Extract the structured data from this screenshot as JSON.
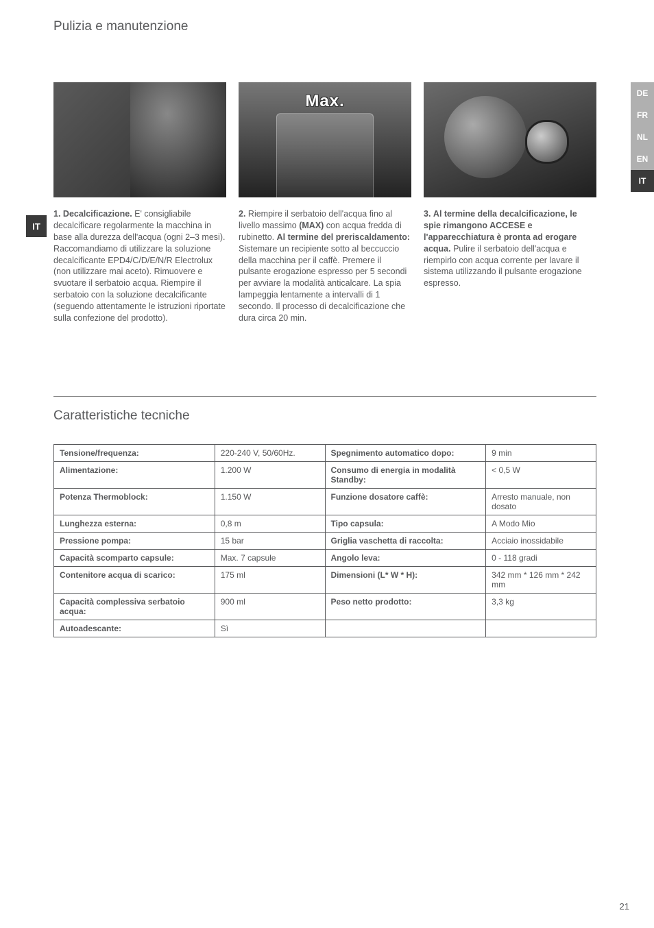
{
  "header": "Pulizia e manutenzione",
  "leftTab": "IT",
  "rightTabs": [
    {
      "label": "DE",
      "active": false
    },
    {
      "label": "FR",
      "active": false
    },
    {
      "label": "NL",
      "active": false
    },
    {
      "label": "EN",
      "active": false
    },
    {
      "label": "IT",
      "active": true
    }
  ],
  "maxLabel": "Max.",
  "steps": [
    {
      "num": "1.",
      "boldLead": "Decalcificazione.",
      "rest": " E' consigliabile decalcificare regolarmente la macchina in base alla durezza dell'acqua (ogni 2–3 mesi). Raccomandiamo di utilizzare la soluzione decalcificante EPD4/C/D/E/N/R Electrolux (non utilizzare mai aceto). Rimuovere e svuotare il serbatoio acqua. Riempire il serbatoio con la soluzione decalcificante (seguendo attentamente le istruzioni riportate sulla confezione del prodotto)."
    },
    {
      "num": "2.",
      "pre": " Riempire il serbatoio dell'acqua fino al livello massimo ",
      "bold1": "(MAX)",
      "mid": " con acqua fredda di rubinetto. ",
      "bold2": "Al termine del preriscaldamento:",
      "rest": " Sistemare un recipiente sotto al beccuccio della macchina per il caffè. Premere il pulsante erogazione espresso per 5 secondi per avviare la modalità anticalcare. La spia lampeggia lentamente a intervalli di 1 secondo. Il processo di decalcificazione che dura circa 20 min."
    },
    {
      "num": "3.",
      "boldLead": "Al termine della decalcificazione, le spie rimangono ACCESE e l'apparecchiatura è pronta ad erogare acqua.",
      "rest": " Pulire il serbatoio dell'acqua e riempirlo con acqua corrente per lavare il sistema utilizzando il pulsante erogazione espresso."
    }
  ],
  "section2": "Caratteristiche tecniche",
  "specs": {
    "rows": [
      [
        "Tensione/frequenza:",
        "220-240 V, 50/60Hz.",
        "Spegnimento automatico dopo:",
        "9 min"
      ],
      [
        "Alimentazione:",
        "1.200 W",
        "Consumo di energia in modalità Standby:",
        "< 0,5 W"
      ],
      [
        "Potenza Thermoblock:",
        "1.150 W",
        "Funzione dosatore caffè:",
        "Arresto manuale, non dosato"
      ],
      [
        "Lunghezza esterna:",
        "0,8 m",
        "Tipo capsula:",
        "A Modo Mio"
      ],
      [
        "Pressione pompa:",
        "15 bar",
        "Griglia vaschetta di raccolta:",
        "Acciaio inossidabile"
      ],
      [
        "Capacità scomparto capsule:",
        "Max. 7 capsule",
        "Angolo leva:",
        "0 - 118 gradi"
      ],
      [
        "Contenitore acqua di scarico:",
        "175 ml",
        "Dimensioni (L* W * H):",
        "342 mm * 126 mm * 242 mm"
      ],
      [
        "Capacità complessiva serbatoio acqua:",
        "900 ml",
        "Peso netto prodotto:",
        "3,3 kg"
      ],
      [
        "Autoadescante:",
        "Sì",
        "",
        ""
      ]
    ]
  },
  "pageNum": "21"
}
